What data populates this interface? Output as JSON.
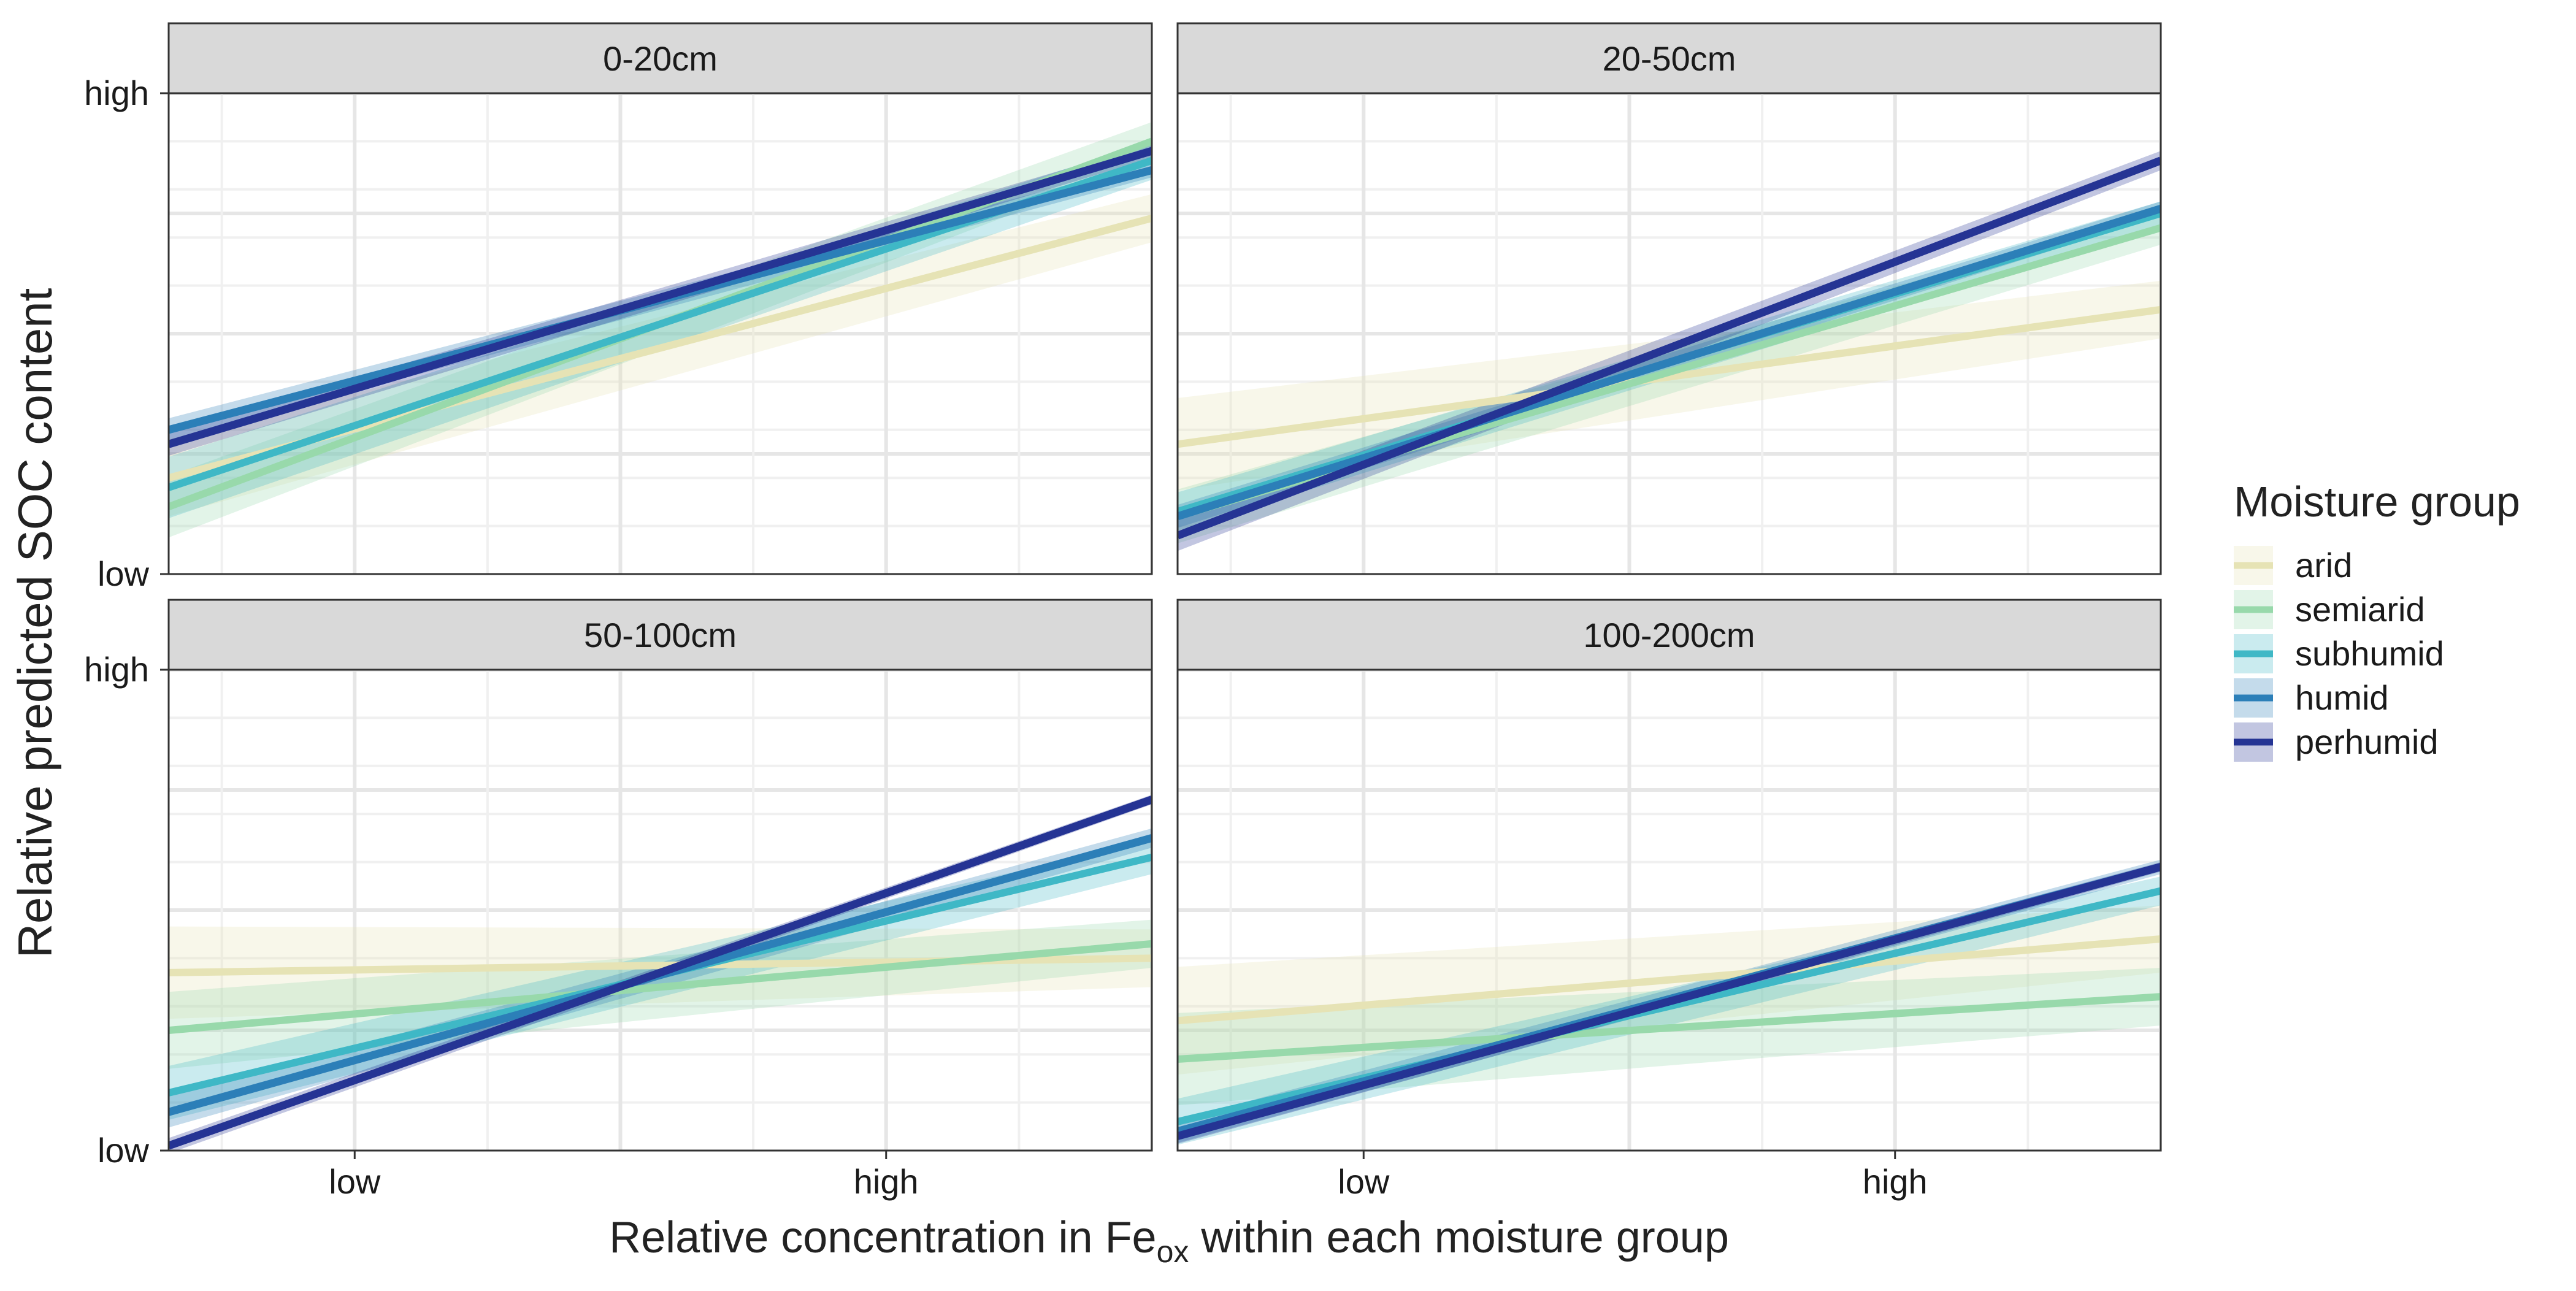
{
  "chart_data": {
    "type": "line",
    "title": "",
    "xlabel": {
      "prefix": "Relative concentration in Fe",
      "subscript": "ox",
      "suffix": " within each moisture group"
    },
    "ylabel": "Relative predicted SOC content",
    "x_ticks": [
      "low",
      "high"
    ],
    "y_ticks": [
      "low",
      "high"
    ],
    "xlim": [
      -0.35,
      1.5
    ],
    "ylim": [
      0,
      1
    ],
    "x_tick_values": [
      0,
      1
    ],
    "y_tick_values": [
      0,
      1
    ],
    "grid": true,
    "legend": {
      "title": "Moisture group",
      "position": "right",
      "entries": [
        "arid",
        "semiarid",
        "subhumid",
        "humid",
        "perhumid"
      ]
    },
    "series_colors": {
      "arid": "#e6e3b5",
      "semiarid": "#98d9ab",
      "subhumid": "#3fb8c6",
      "humid": "#2c7fb8",
      "perhumid": "#253494"
    },
    "panels": [
      {
        "label": "0-20cm",
        "series": [
          {
            "name": "arid",
            "y_start": 0.2,
            "y_end": 0.74,
            "band": 0.05
          },
          {
            "name": "semiarid",
            "y_start": 0.14,
            "y_end": 0.9,
            "band": 0.04
          },
          {
            "name": "subhumid",
            "y_start": 0.18,
            "y_end": 0.86,
            "band": 0.04
          },
          {
            "name": "humid",
            "y_start": 0.3,
            "y_end": 0.84,
            "band": 0.015
          },
          {
            "name": "perhumid",
            "y_start": 0.27,
            "y_end": 0.88,
            "band": 0.015
          }
        ]
      },
      {
        "label": "20-50cm",
        "series": [
          {
            "name": "arid",
            "y_start": 0.27,
            "y_end": 0.55,
            "band": 0.06
          },
          {
            "name": "semiarid",
            "y_start": 0.12,
            "y_end": 0.72,
            "band": 0.035
          },
          {
            "name": "subhumid",
            "y_start": 0.13,
            "y_end": 0.75,
            "band": 0.025
          },
          {
            "name": "humid",
            "y_start": 0.12,
            "y_end": 0.76,
            "band": 0.015
          },
          {
            "name": "perhumid",
            "y_start": 0.08,
            "y_end": 0.86,
            "band": 0.02
          }
        ]
      },
      {
        "label": "50-100cm",
        "series": [
          {
            "name": "arid",
            "y_start": 0.37,
            "y_end": 0.4,
            "band": 0.06
          },
          {
            "name": "semiarid",
            "y_start": 0.25,
            "y_end": 0.43,
            "band": 0.05
          },
          {
            "name": "subhumid",
            "y_start": 0.12,
            "y_end": 0.61,
            "band": 0.035
          },
          {
            "name": "humid",
            "y_start": 0.08,
            "y_end": 0.65,
            "band": 0.02
          },
          {
            "name": "perhumid",
            "y_start": 0.01,
            "y_end": 0.73,
            "band": 0.01
          }
        ]
      },
      {
        "label": "100-200cm",
        "series": [
          {
            "name": "arid",
            "y_start": 0.27,
            "y_end": 0.44,
            "band": 0.07
          },
          {
            "name": "semiarid",
            "y_start": 0.19,
            "y_end": 0.32,
            "band": 0.06
          },
          {
            "name": "subhumid",
            "y_start": 0.06,
            "y_end": 0.54,
            "band": 0.03
          },
          {
            "name": "humid",
            "y_start": 0.04,
            "y_end": 0.59,
            "band": 0.015
          },
          {
            "name": "perhumid",
            "y_start": 0.03,
            "y_end": 0.59,
            "band": 0.01
          }
        ]
      }
    ]
  }
}
